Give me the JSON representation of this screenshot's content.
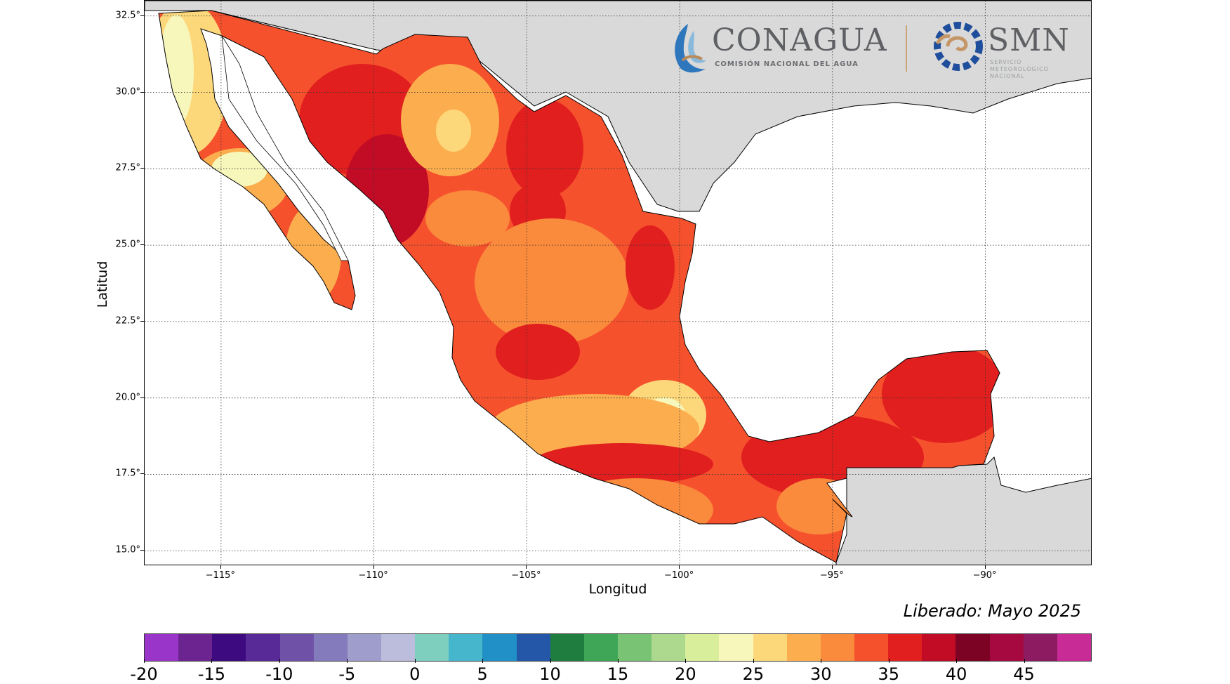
{
  "map": {
    "xlabel": "Longitud",
    "ylabel": "Latitud",
    "x_ticks": [
      "−115°",
      "−110°",
      "−105°",
      "−100°",
      "−95°",
      "−90°"
    ],
    "y_ticks": [
      "32.5°",
      "30.0°",
      "27.5°",
      "25.0°",
      "22.5°",
      "20.0°",
      "17.5°",
      "15.0°"
    ],
    "lon_values": [
      -115,
      -110,
      -105,
      -100,
      -95,
      -90
    ],
    "lat_values": [
      32.5,
      30.0,
      27.5,
      25.0,
      22.5,
      20.0,
      17.5,
      15.0
    ],
    "extent": {
      "lon": [
        -117.5,
        -86.5
      ],
      "lat": [
        14.5,
        33.0
      ]
    },
    "land_color_outside": "#d9d9d9",
    "ocean_color": "#ffffff",
    "grid": "dotted"
  },
  "logos": {
    "conagua_name": "CONAGUA",
    "conagua_sub": "COMISIÓN NACIONAL DEL AGUA",
    "smn_name": "SMN",
    "smn_sub1": "SERVICIO",
    "smn_sub2": "METEOROLÓGICO",
    "smn_sub3": "NACIONAL"
  },
  "release_text": "Liberado: Mayo 2025",
  "colorbar": {
    "labels": [
      "-20",
      "-15",
      "-10",
      "-5",
      "0",
      "5",
      "10",
      "15",
      "20",
      "25",
      "30",
      "35",
      "40",
      "45"
    ],
    "label_values": [
      -20,
      -15,
      -10,
      -5,
      0,
      5,
      10,
      15,
      20,
      25,
      30,
      35,
      40,
      45
    ],
    "min": -20,
    "max": 50,
    "colors": [
      "#9a35c9",
      "#6c2590",
      "#3e0a80",
      "#572a98",
      "#6f52a8",
      "#837bbb",
      "#9f9dcb",
      "#bcbcdc",
      "#7fcfbf",
      "#45b6cc",
      "#2090c6",
      "#2557a8",
      "#1f7d3f",
      "#3fa657",
      "#78c474",
      "#add98e",
      "#d9ee9b",
      "#f7f7bb",
      "#fdd87b",
      "#fcae4e",
      "#fa8a3c",
      "#f6512d",
      "#e11f1f",
      "#c20c26",
      "#7c0323",
      "#a5093f",
      "#8c1b61",
      "#c82a96"
    ]
  }
}
